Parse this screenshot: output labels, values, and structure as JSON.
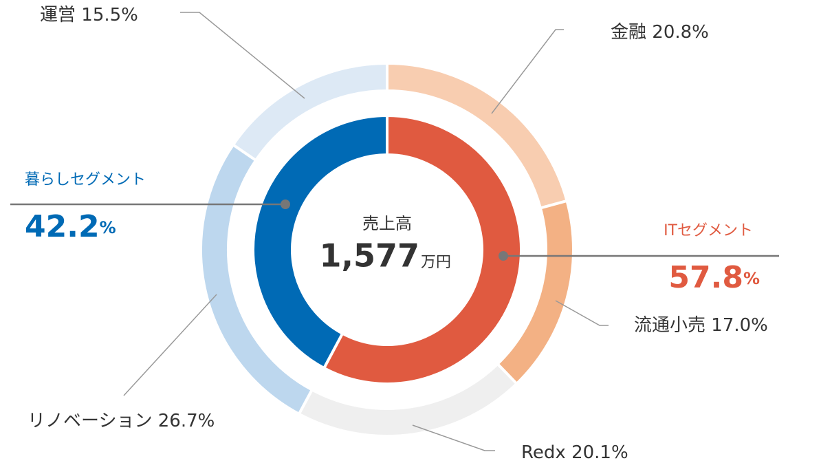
{
  "chart_data": {
    "type": "donut",
    "center_title": "売上高",
    "total": {
      "value": 1577,
      "label": "1,577"
    },
    "total_unit": "万円",
    "inner": {
      "categories": [
        "ITセグメント",
        "暮らしセグメント"
      ],
      "values": [
        57.8,
        42.2
      ],
      "colors": [
        "#e05a40",
        "#006ab5"
      ],
      "unit": "%"
    },
    "outer": {
      "categories": [
        "金融",
        "流通小売",
        "Redx",
        "リノベーション",
        "運営"
      ],
      "values": [
        20.8,
        17.0,
        20.1,
        26.7,
        15.5
      ],
      "value_labels": [
        "20.8%",
        "17.0%",
        "20.1%",
        "26.7%",
        "15.5%"
      ],
      "colors": [
        "#f8cdb0",
        "#f3b184",
        "#efefef",
        "#bdd7ee",
        "#dde9f5"
      ]
    }
  }
}
